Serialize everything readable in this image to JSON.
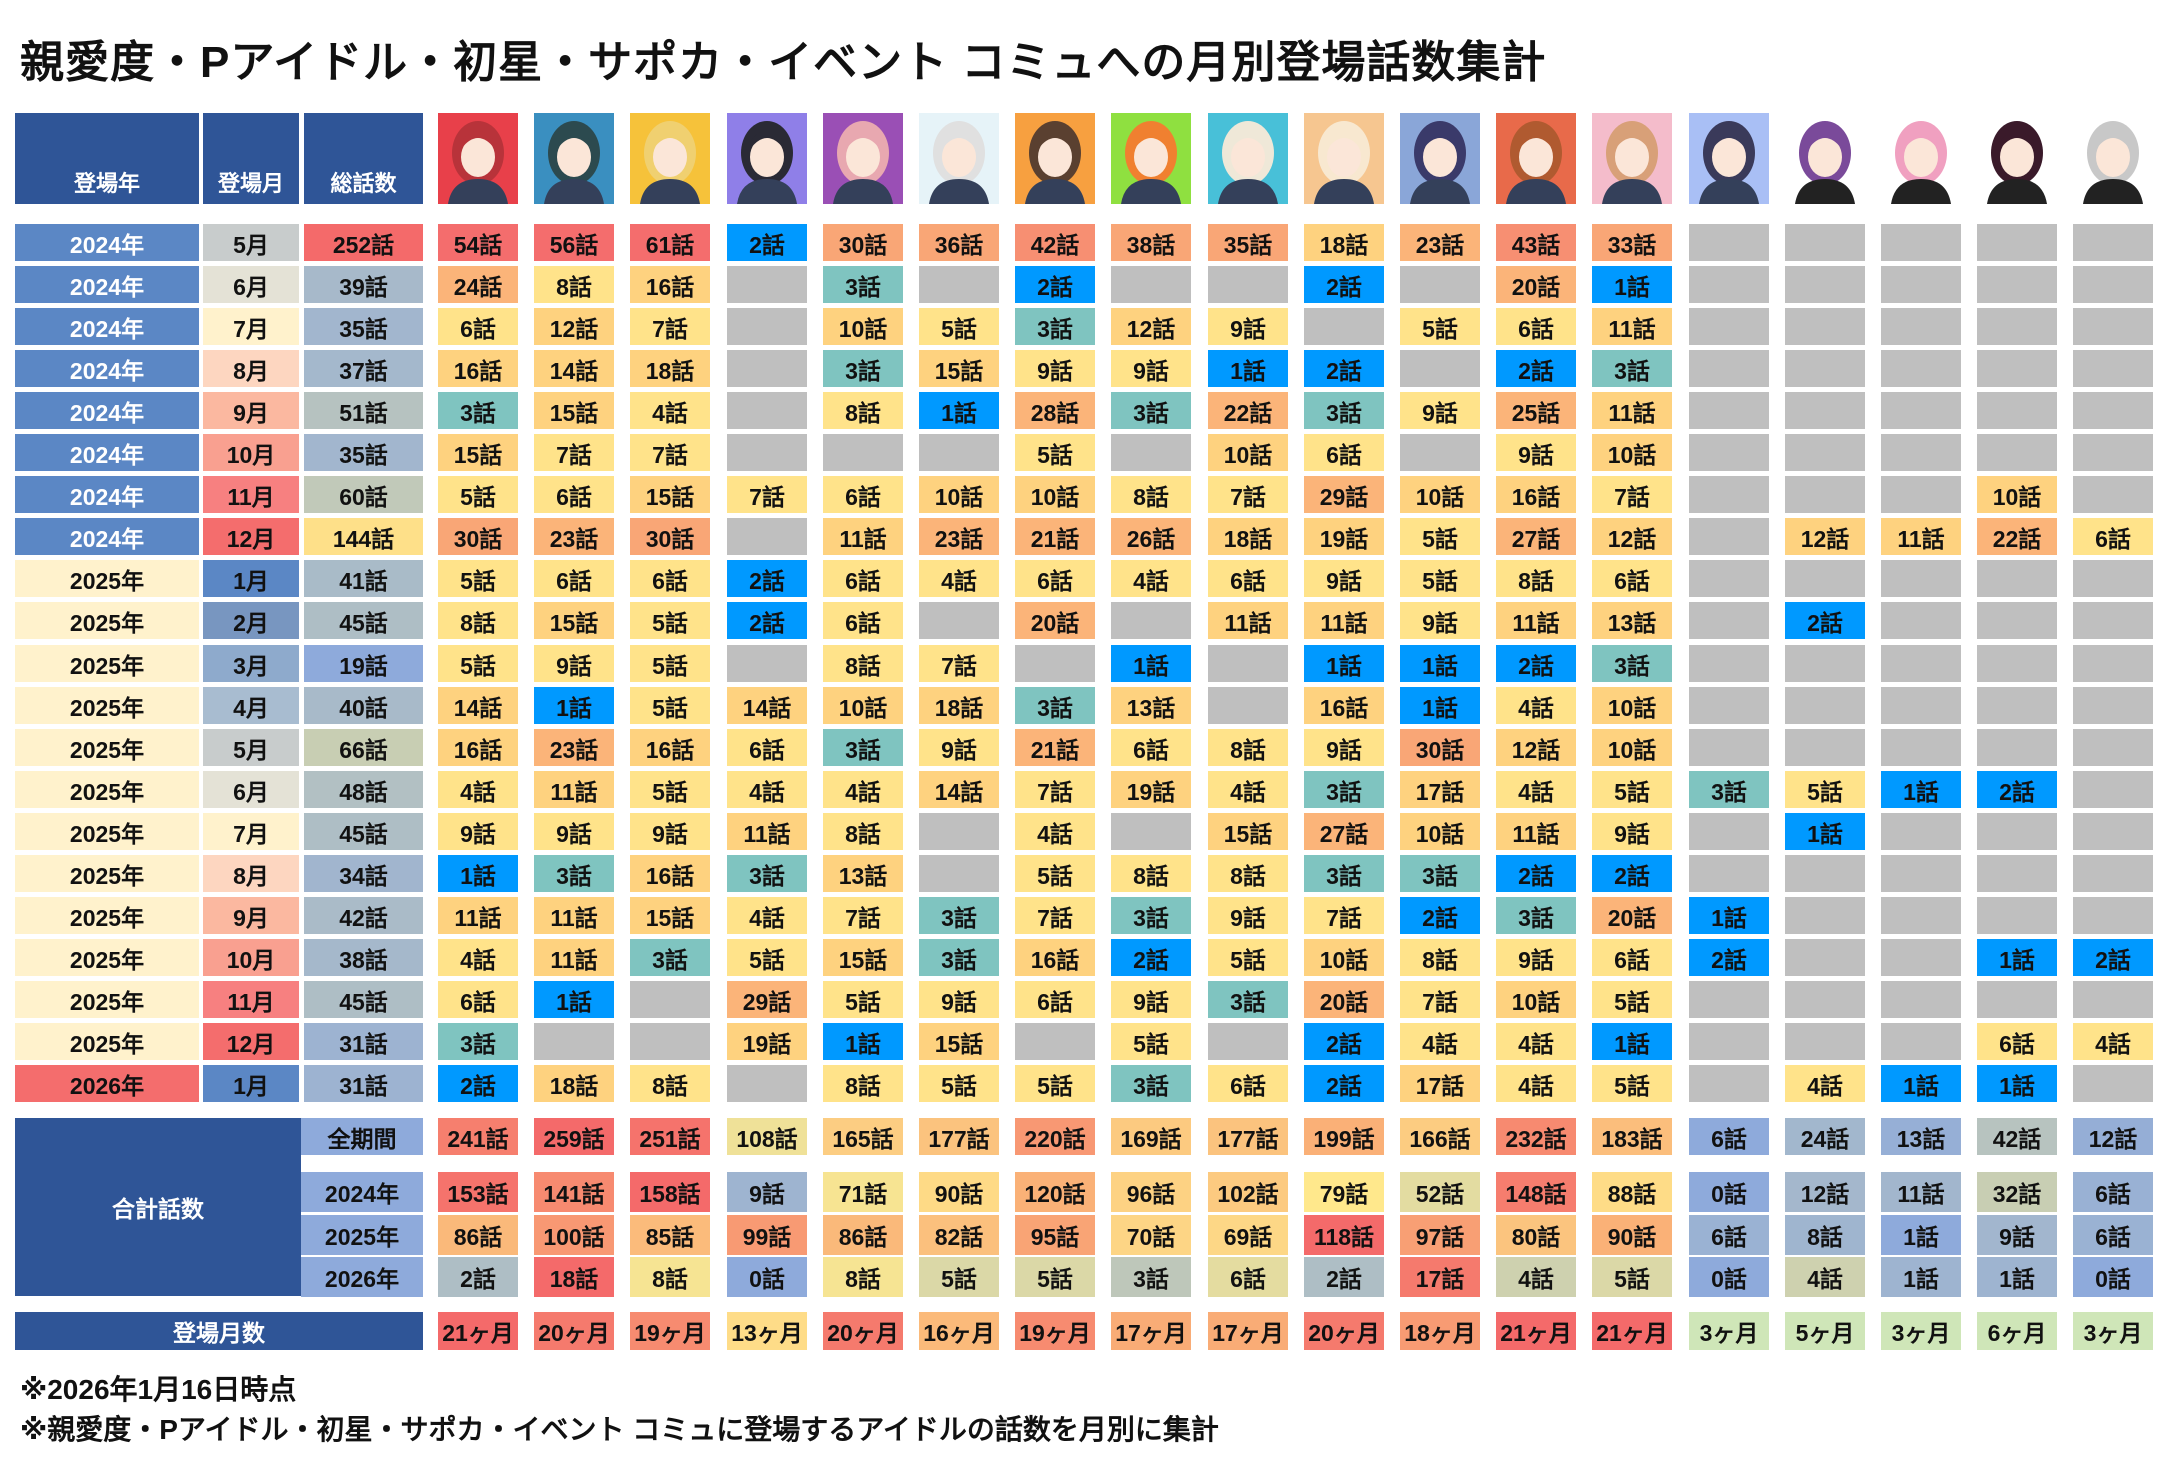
{
  "title": "親愛度・Pアイドル・初星・サポカ・イベント コミュへの月別登場話数集計",
  "headers": {
    "year": "登場年",
    "month": "登場月",
    "total": "総話数"
  },
  "portrait_colors": [
    "#e8404a",
    "#3a8fc0",
    "#f6c23a",
    "#8f7fe8",
    "#9a4fb5",
    "#e6f3f8",
    "#f7a040",
    "#8fe040",
    "#48c0d8",
    "#f6c690",
    "#8aa6d8",
    "#e86a4a",
    "#f4bccb",
    "#a9bff5",
    "#ffffff",
    "#ffffff",
    "#ffffff",
    "#ffffff"
  ],
  "rows": [
    {
      "year": "2024年",
      "month": "5月",
      "total": "252話",
      "cells": [
        "54話",
        "56話",
        "61話",
        "2話",
        "30話",
        "36話",
        "42話",
        "38話",
        "35話",
        "18話",
        "23話",
        "43話",
        "33話",
        "",
        "",
        "",
        "",
        ""
      ]
    },
    {
      "year": "2024年",
      "month": "6月",
      "total": "39話",
      "cells": [
        "24話",
        "8話",
        "16話",
        "",
        "3話",
        "",
        "2話",
        "",
        "",
        "2話",
        "",
        "20話",
        "1話",
        "",
        "",
        "",
        "",
        ""
      ]
    },
    {
      "year": "2024年",
      "month": "7月",
      "total": "35話",
      "cells": [
        "6話",
        "12話",
        "7話",
        "",
        "10話",
        "5話",
        "3話",
        "12話",
        "9話",
        "",
        "5話",
        "6話",
        "11話",
        "",
        "",
        "",
        "",
        ""
      ]
    },
    {
      "year": "2024年",
      "month": "8月",
      "total": "37話",
      "cells": [
        "16話",
        "14話",
        "18話",
        "",
        "3話",
        "15話",
        "9話",
        "9話",
        "1話",
        "2話",
        "",
        "2話",
        "3話",
        "",
        "",
        "",
        "",
        ""
      ]
    },
    {
      "year": "2024年",
      "month": "9月",
      "total": "51話",
      "cells": [
        "3話",
        "15話",
        "4話",
        "",
        "8話",
        "1話",
        "28話",
        "3話",
        "22話",
        "3話",
        "9話",
        "25話",
        "11話",
        "",
        "",
        "",
        "",
        ""
      ]
    },
    {
      "year": "2024年",
      "month": "10月",
      "total": "35話",
      "cells": [
        "15話",
        "7話",
        "7話",
        "",
        "",
        "",
        "5話",
        "",
        "10話",
        "6話",
        "",
        "9話",
        "10話",
        "",
        "",
        "",
        "",
        ""
      ]
    },
    {
      "year": "2024年",
      "month": "11月",
      "total": "60話",
      "cells": [
        "5話",
        "6話",
        "15話",
        "7話",
        "6話",
        "10話",
        "10話",
        "8話",
        "7話",
        "29話",
        "10話",
        "16話",
        "7話",
        "",
        "",
        "",
        "10話",
        ""
      ]
    },
    {
      "year": "2024年",
      "month": "12月",
      "total": "144話",
      "cells": [
        "30話",
        "23話",
        "30話",
        "",
        "11話",
        "23話",
        "21話",
        "26話",
        "18話",
        "19話",
        "5話",
        "27話",
        "12話",
        "",
        "12話",
        "11話",
        "22話",
        "6話"
      ]
    },
    {
      "year": "2025年",
      "month": "1月",
      "total": "41話",
      "cells": [
        "5話",
        "6話",
        "6話",
        "2話",
        "6話",
        "4話",
        "6話",
        "4話",
        "6話",
        "9話",
        "5話",
        "8話",
        "6話",
        "",
        "",
        "",
        "",
        ""
      ]
    },
    {
      "year": "2025年",
      "month": "2月",
      "total": "45話",
      "cells": [
        "8話",
        "15話",
        "5話",
        "2話",
        "6話",
        "",
        "20話",
        "",
        "11話",
        "11話",
        "9話",
        "11話",
        "13話",
        "",
        "2話",
        "",
        "",
        ""
      ]
    },
    {
      "year": "2025年",
      "month": "3月",
      "total": "19話",
      "cells": [
        "5話",
        "9話",
        "5話",
        "",
        "8話",
        "7話",
        "",
        "1話",
        "",
        "1話",
        "1話",
        "2話",
        "3話",
        "",
        "",
        "",
        "",
        ""
      ]
    },
    {
      "year": "2025年",
      "month": "4月",
      "total": "40話",
      "cells": [
        "14話",
        "1話",
        "5話",
        "14話",
        "10話",
        "18話",
        "3話",
        "13話",
        "",
        "16話",
        "1話",
        "4話",
        "10話",
        "",
        "",
        "",
        "",
        ""
      ]
    },
    {
      "year": "2025年",
      "month": "5月",
      "total": "66話",
      "cells": [
        "16話",
        "23話",
        "16話",
        "6話",
        "3話",
        "9話",
        "21話",
        "6話",
        "8話",
        "9話",
        "30話",
        "12話",
        "10話",
        "",
        "",
        "",
        "",
        ""
      ]
    },
    {
      "year": "2025年",
      "month": "6月",
      "total": "48話",
      "cells": [
        "4話",
        "11話",
        "5話",
        "4話",
        "4話",
        "14話",
        "7話",
        "19話",
        "4話",
        "3話",
        "17話",
        "4話",
        "5話",
        "3話",
        "5話",
        "1話",
        "2話",
        ""
      ]
    },
    {
      "year": "2025年",
      "month": "7月",
      "total": "45話",
      "cells": [
        "9話",
        "9話",
        "9話",
        "11話",
        "8話",
        "",
        "4話",
        "",
        "15話",
        "27話",
        "10話",
        "11話",
        "9話",
        "",
        "1話",
        "",
        "",
        ""
      ]
    },
    {
      "year": "2025年",
      "month": "8月",
      "total": "34話",
      "cells": [
        "1話",
        "3話",
        "16話",
        "3話",
        "13話",
        "",
        "5話",
        "8話",
        "8話",
        "3話",
        "3話",
        "2話",
        "2話",
        "",
        "",
        "",
        "",
        ""
      ]
    },
    {
      "year": "2025年",
      "month": "9月",
      "total": "42話",
      "cells": [
        "11話",
        "11話",
        "15話",
        "4話",
        "7話",
        "3話",
        "7話",
        "3話",
        "9話",
        "7話",
        "2話",
        "3話",
        "20話",
        "1話",
        "",
        "",
        "",
        ""
      ]
    },
    {
      "year": "2025年",
      "month": "10月",
      "total": "38話",
      "cells": [
        "4話",
        "11話",
        "3話",
        "5話",
        "15話",
        "3話",
        "16話",
        "2話",
        "5話",
        "10話",
        "8話",
        "9話",
        "6話",
        "2話",
        "",
        "",
        "1話",
        "2話"
      ]
    },
    {
      "year": "2025年",
      "month": "11月",
      "total": "45話",
      "cells": [
        "6話",
        "1話",
        "",
        "29話",
        "5話",
        "9話",
        "6話",
        "9話",
        "3話",
        "20話",
        "7話",
        "10話",
        "5話",
        "",
        "",
        "",
        "",
        ""
      ]
    },
    {
      "year": "2025年",
      "month": "12月",
      "total": "31話",
      "cells": [
        "3話",
        "",
        "",
        "19話",
        "1話",
        "15話",
        "",
        "5話",
        "",
        "2話",
        "4話",
        "4話",
        "1話",
        "",
        "",
        "",
        "6話",
        "4話"
      ]
    },
    {
      "year": "2026年",
      "month": "1月",
      "total": "31話",
      "cells": [
        "2話",
        "18話",
        "8話",
        "",
        "8話",
        "5話",
        "5話",
        "3話",
        "6話",
        "2話",
        "17話",
        "4話",
        "5話",
        "",
        "4話",
        "1話",
        "1話",
        ""
      ]
    }
  ],
  "summary": {
    "label": "合計話数",
    "rows": [
      {
        "label": "全期間",
        "cells": [
          "241話",
          "259話",
          "251話",
          "108話",
          "165話",
          "177話",
          "220話",
          "169話",
          "177話",
          "199話",
          "166話",
          "232話",
          "183話",
          "6話",
          "24話",
          "13話",
          "42話",
          "12話"
        ]
      },
      {
        "label": "2024年",
        "cells": [
          "153話",
          "141話",
          "158話",
          "9話",
          "71話",
          "90話",
          "120話",
          "96話",
          "102話",
          "79話",
          "52話",
          "148話",
          "88話",
          "0話",
          "12話",
          "11話",
          "32話",
          "6話"
        ]
      },
      {
        "label": "2025年",
        "cells": [
          "86話",
          "100話",
          "85話",
          "99話",
          "86話",
          "82話",
          "95話",
          "70話",
          "69話",
          "118話",
          "97話",
          "80話",
          "90話",
          "6話",
          "8話",
          "1話",
          "9話",
          "6話"
        ]
      },
      {
        "label": "2026年",
        "cells": [
          "2話",
          "18話",
          "8話",
          "0話",
          "8話",
          "5話",
          "5話",
          "3話",
          "6話",
          "2話",
          "17話",
          "4話",
          "5話",
          "0話",
          "4話",
          "1話",
          "1話",
          "0話"
        ]
      }
    ]
  },
  "months_count": {
    "label": "登場月数",
    "cells": [
      "21ヶ月",
      "20ヶ月",
      "19ヶ月",
      "13ヶ月",
      "20ヶ月",
      "16ヶ月",
      "19ヶ月",
      "17ヶ月",
      "17ヶ月",
      "20ヶ月",
      "18ヶ月",
      "21ヶ月",
      "21ヶ月",
      "3ヶ月",
      "5ヶ月",
      "3ヶ月",
      "6ヶ月",
      "3ヶ月"
    ]
  },
  "notes": [
    "※2026年1月16日時点",
    "※親愛度・Pアイドル・初星・サポカ・イベント コミュに登場するアイドルの話数を月別に集計"
  ]
}
